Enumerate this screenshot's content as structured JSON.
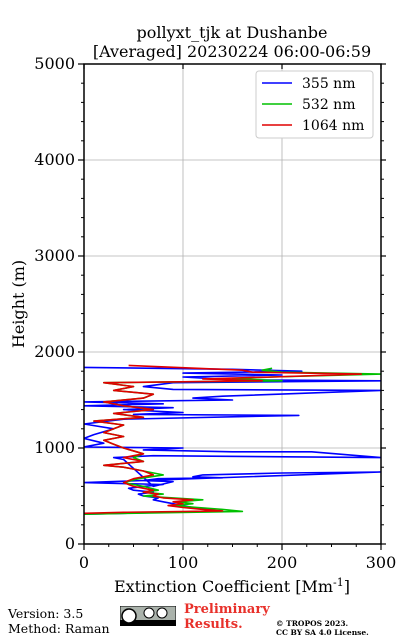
{
  "chart_data": {
    "type": "line",
    "title": [
      "pollyxt_tjk at Dushanbe",
      "[Averaged] 20230224 06:00-06:59"
    ],
    "xlabel": "Extinction Coefficient [Mm",
    "xlabel_sup": "-1",
    "xlabel_end": "]",
    "ylabel": "Height (m)",
    "xlim": [
      0,
      300
    ],
    "ylim": [
      0,
      5000
    ],
    "xticks": [
      0,
      100,
      200,
      300
    ],
    "yticks": [
      0,
      1000,
      2000,
      3000,
      4000,
      5000
    ],
    "grid": true,
    "legend_position": "top-right",
    "series": [
      {
        "name": "355 nm",
        "color": "#0000ff",
        "points": [
          [
            0,
            310
          ],
          [
            40,
            320
          ],
          [
            120,
            340
          ],
          [
            130,
            360
          ],
          [
            110,
            380
          ],
          [
            100,
            400
          ],
          [
            90,
            420
          ],
          [
            80,
            440
          ],
          [
            70,
            460
          ],
          [
            75,
            480
          ],
          [
            60,
            500
          ],
          [
            55,
            520
          ],
          [
            70,
            540
          ],
          [
            50,
            560
          ],
          [
            45,
            580
          ],
          [
            60,
            600
          ],
          [
            80,
            620
          ],
          [
            0,
            640
          ],
          [
            300,
            750
          ],
          [
            200,
            740
          ],
          [
            120,
            720
          ],
          [
            110,
            700
          ],
          [
            140,
            690
          ],
          [
            75,
            680
          ],
          [
            60,
            660
          ],
          [
            90,
            650
          ],
          [
            70,
            600
          ],
          [
            40,
            880
          ],
          [
            30,
            900
          ],
          [
            70,
            920
          ],
          [
            300,
            900
          ],
          [
            230,
            960
          ],
          [
            150,
            960
          ],
          [
            60,
            980
          ],
          [
            100,
            1000
          ],
          [
            0,
            1010
          ],
          [
            20,
            1050
          ],
          [
            0,
            1100
          ],
          [
            10,
            1140
          ],
          [
            30,
            1200
          ],
          [
            0,
            1250
          ],
          [
            40,
            1300
          ],
          [
            217,
            1340
          ],
          [
            50,
            1350
          ],
          [
            100,
            1370
          ],
          [
            40,
            1400
          ],
          [
            90,
            1420
          ],
          [
            0,
            1440
          ],
          [
            80,
            1460
          ],
          [
            0,
            1480
          ],
          [
            150,
            1500
          ],
          [
            110,
            1520
          ],
          [
            140,
            1540
          ],
          [
            300,
            1600
          ],
          [
            90,
            1610
          ],
          [
            60,
            1640
          ],
          [
            90,
            1680
          ],
          [
            300,
            1700
          ],
          [
            150,
            1710
          ],
          [
            100,
            1740
          ],
          [
            200,
            1760
          ],
          [
            100,
            1780
          ],
          [
            220,
            1800
          ],
          [
            150,
            1820
          ],
          [
            0,
            1840
          ]
        ]
      },
      {
        "name": "532 nm",
        "color": "#00c000",
        "points": [
          [
            0,
            310
          ],
          [
            45,
            320
          ],
          [
            160,
            340
          ],
          [
            140,
            360
          ],
          [
            115,
            380
          ],
          [
            90,
            400
          ],
          [
            110,
            420
          ],
          [
            95,
            440
          ],
          [
            120,
            460
          ],
          [
            90,
            480
          ],
          [
            60,
            500
          ],
          [
            80,
            520
          ],
          [
            60,
            540
          ],
          [
            75,
            560
          ],
          [
            60,
            600
          ],
          [
            40,
            640
          ],
          [
            55,
            680
          ],
          [
            80,
            720
          ],
          [
            60,
            760
          ],
          [
            40,
            800
          ],
          [
            20,
            820
          ],
          [
            60,
            860
          ],
          [
            50,
            900
          ],
          [
            60,
            940
          ],
          [
            40,
            1000
          ],
          [
            30,
            1040
          ],
          [
            20,
            1080
          ],
          [
            40,
            1120
          ],
          [
            20,
            1160
          ],
          [
            30,
            1200
          ],
          [
            40,
            1240
          ],
          [
            10,
            1280
          ],
          [
            60,
            1320
          ],
          [
            30,
            1360
          ],
          [
            70,
            1400
          ],
          [
            40,
            1440
          ],
          [
            20,
            1480
          ],
          [
            60,
            1520
          ],
          [
            70,
            1560
          ],
          [
            30,
            1600
          ],
          [
            50,
            1640
          ],
          [
            20,
            1680
          ],
          [
            200,
            1700
          ],
          [
            150,
            1720
          ],
          [
            190,
            1740
          ],
          [
            300,
            1770
          ],
          [
            200,
            1790
          ],
          [
            180,
            1810
          ],
          [
            190,
            1830
          ]
        ]
      },
      {
        "name": "1064 nm",
        "color": "#e00000",
        "points": [
          [
            0,
            320
          ],
          [
            40,
            330
          ],
          [
            140,
            345
          ],
          [
            120,
            360
          ],
          [
            100,
            380
          ],
          [
            85,
            400
          ],
          [
            100,
            420
          ],
          [
            90,
            440
          ],
          [
            110,
            460
          ],
          [
            80,
            480
          ],
          [
            70,
            500
          ],
          [
            75,
            520
          ],
          [
            60,
            540
          ],
          [
            70,
            560
          ],
          [
            50,
            600
          ],
          [
            40,
            640
          ],
          [
            50,
            680
          ],
          [
            70,
            720
          ],
          [
            60,
            760
          ],
          [
            40,
            800
          ],
          [
            20,
            820
          ],
          [
            60,
            860
          ],
          [
            40,
            900
          ],
          [
            60,
            940
          ],
          [
            40,
            1000
          ],
          [
            30,
            1040
          ],
          [
            20,
            1080
          ],
          [
            40,
            1120
          ],
          [
            20,
            1160
          ],
          [
            30,
            1200
          ],
          [
            40,
            1240
          ],
          [
            10,
            1280
          ],
          [
            60,
            1320
          ],
          [
            30,
            1360
          ],
          [
            70,
            1400
          ],
          [
            40,
            1440
          ],
          [
            20,
            1480
          ],
          [
            60,
            1520
          ],
          [
            70,
            1560
          ],
          [
            30,
            1600
          ],
          [
            50,
            1640
          ],
          [
            20,
            1680
          ],
          [
            180,
            1700
          ],
          [
            120,
            1720
          ],
          [
            190,
            1740
          ],
          [
            280,
            1770
          ],
          [
            170,
            1790
          ],
          [
            160,
            1810
          ],
          [
            45,
            1860
          ]
        ]
      }
    ]
  },
  "footer": {
    "version": "Version: 3.5",
    "method": "Method: Raman",
    "preliminary_line1": "Preliminary",
    "preliminary_line2": "Results.",
    "license_line1": "© TROPOS 2023.",
    "license_line2": "CC BY SA 4.0 License."
  }
}
